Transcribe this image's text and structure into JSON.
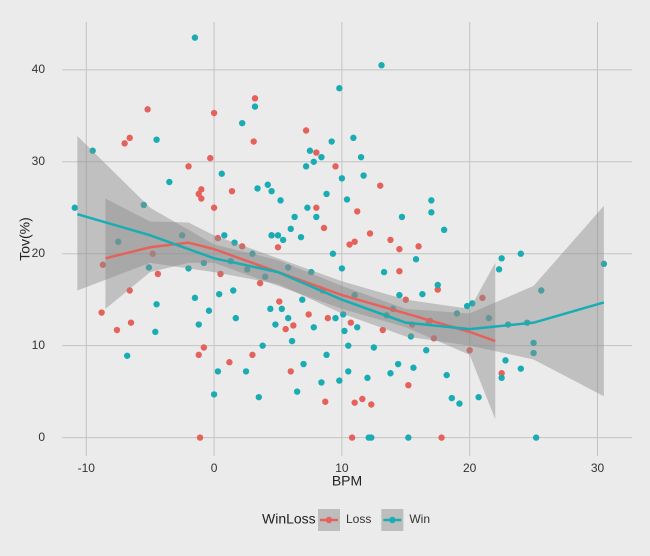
{
  "chart_data": {
    "type": "scatter",
    "x_label": "BPM",
    "y_label": "Tov(%)",
    "legend_title": "WinLoss",
    "xlim": [
      -11.9,
      32.7
    ],
    "ylim": [
      -2.0,
      45.2
    ],
    "xticks": [
      -10,
      0,
      10,
      20,
      30
    ],
    "yticks": [
      0,
      10,
      20,
      30,
      40
    ],
    "grid": true,
    "legend_position": "bottom",
    "band_color": "#8c8c8c",
    "series": [
      {
        "name": "Loss",
        "color": "#e5625c",
        "x": [
          -8.8,
          -8.7,
          -7.6,
          -7,
          -6.6,
          -6.5,
          -6.6,
          -5.2,
          -4.4,
          -4.8,
          -2,
          -1.2,
          -1.2,
          -1,
          -1,
          -0.8,
          -0.3,
          0,
          0,
          0.3,
          0.5,
          1.2,
          1.4,
          2.2,
          3,
          3.1,
          3.2,
          3.6,
          4.5,
          5,
          5.1,
          5.6,
          6,
          6.2,
          7.2,
          7.4,
          8,
          8,
          8.6,
          8.7,
          8.5,
          8.9,
          9.5,
          10.6,
          10.7,
          10.8,
          11,
          11,
          11.2,
          11.6,
          12.2,
          12.3,
          13,
          13.2,
          13.8,
          14.5,
          14.5,
          15,
          15.2,
          15.5,
          16,
          16.8,
          16.9,
          17.2,
          17.8,
          17.5,
          20,
          21,
          22.5,
          -1.1
        ],
        "values": [
          13.6,
          18.8,
          11.7,
          32,
          32.6,
          12.5,
          16,
          35.7,
          17.8,
          20,
          29.5,
          9,
          26.5,
          27,
          26,
          9.8,
          30.4,
          35.3,
          25,
          21.7,
          17.8,
          8.2,
          26.8,
          20.8,
          9,
          32.2,
          36.9,
          16.8,
          22,
          20.7,
          14.8,
          11.8,
          7.2,
          12.2,
          33.4,
          13.4,
          31,
          25,
          22.8,
          3.9,
          16,
          13,
          29.5,
          21,
          12.5,
          0,
          3.8,
          21.3,
          24.6,
          4.2,
          22.2,
          3.6,
          27.4,
          11.7,
          21.5,
          18.1,
          20.5,
          15,
          5.7,
          12.3,
          20.8,
          12.6,
          12.7,
          10.8,
          0,
          16.1,
          9.5,
          15.2,
          7,
          0
        ],
        "smooth": {
          "x": [
            -8.5,
            -5,
            -2,
            0,
            5,
            10,
            15,
            20,
            22
          ],
          "values": [
            19.5,
            20.7,
            21.2,
            20.5,
            18,
            15.5,
            13.5,
            11.5,
            10.5
          ],
          "lower": [
            14,
            18,
            19,
            19,
            16.5,
            14,
            12,
            9,
            2
          ],
          "upper": [
            26,
            23.5,
            23.4,
            22,
            19.5,
            17,
            15,
            14,
            19
          ]
        }
      },
      {
        "name": "Win",
        "color": "#19adb3",
        "x": [
          -10.9,
          -9.5,
          -7.5,
          -6.8,
          -5.5,
          -5.1,
          -4.5,
          -4.5,
          -4.6,
          -3.5,
          -2.5,
          -2,
          -1.5,
          -1.5,
          -1.2,
          -0.8,
          -0.4,
          0,
          0.3,
          0.4,
          0.6,
          0.8,
          1.3,
          1.5,
          1.6,
          1.7,
          2.2,
          2.5,
          2.6,
          3,
          3.2,
          3.4,
          3.5,
          3.8,
          4,
          4.2,
          4.4,
          4.5,
          4.5,
          4.8,
          5,
          5.2,
          5.3,
          5.4,
          5.8,
          5.8,
          6,
          6.1,
          6.3,
          6.5,
          6.8,
          6.9,
          7,
          7.2,
          7.3,
          7.5,
          7.6,
          7.8,
          7.8,
          8,
          8.4,
          8.4,
          8.8,
          8.8,
          9.2,
          9.3,
          9.5,
          9.8,
          9.8,
          10,
          10,
          10.1,
          10.2,
          10.4,
          10.5,
          10.5,
          10.9,
          11,
          11.2,
          11.5,
          11.7,
          12,
          12.1,
          12.3,
          12.5,
          13.1,
          13.3,
          13.5,
          13.8,
          14,
          14.4,
          14.5,
          14.7,
          15.2,
          15.4,
          15.6,
          15.8,
          16.3,
          16.6,
          17,
          17,
          17.5,
          18,
          18.2,
          18.6,
          19,
          19.2,
          19.8,
          20.2,
          20.7,
          21.5,
          22.3,
          22.5,
          22.5,
          22.8,
          23,
          24,
          24,
          24.5,
          25,
          25,
          25.2,
          25.6,
          30.5
        ],
        "values": [
          25,
          31.2,
          21.3,
          8.9,
          25.3,
          18.5,
          32.4,
          14.5,
          11.5,
          27.8,
          22,
          18.4,
          43.5,
          15.2,
          12.3,
          19,
          13.8,
          4.7,
          7.2,
          15.6,
          28.7,
          22,
          19.2,
          16,
          21.2,
          13,
          34.2,
          7.2,
          18.3,
          20,
          36,
          27.1,
          4.4,
          10,
          17.5,
          27.5,
          14,
          26.8,
          22,
          12.3,
          22,
          25.8,
          14,
          21.5,
          18.5,
          13,
          22.7,
          10.5,
          24,
          5,
          21.8,
          15,
          8,
          29.5,
          25,
          31.2,
          18,
          30,
          12,
          24,
          30.5,
          6,
          26.5,
          9,
          32.2,
          20,
          13,
          6.2,
          38,
          28.2,
          18.4,
          13.4,
          11.6,
          25.9,
          10,
          7.2,
          32.6,
          15.5,
          12,
          30.5,
          28.5,
          6.5,
          0,
          0,
          9.8,
          40.5,
          18,
          13.3,
          7,
          14,
          8,
          15.5,
          24,
          0,
          11,
          7.6,
          19.4,
          15.6,
          9.5,
          25.8,
          24.5,
          16.6,
          22.6,
          6.8,
          4.3,
          13.5,
          3.7,
          14.3,
          14.6,
          4.4,
          13,
          18.3,
          19.5,
          6.5,
          8.4,
          12.3,
          20,
          7.5,
          12.5,
          10.3,
          9.2,
          0,
          16,
          18.9
        ],
        "smooth": {
          "x": [
            -10.7,
            -5,
            0,
            5,
            10,
            15,
            20,
            25,
            30.5
          ],
          "values": [
            24.3,
            22,
            19.5,
            18,
            15,
            12.5,
            11.8,
            12.5,
            14.7
          ],
          "lower": [
            16,
            19,
            18,
            16.7,
            13.5,
            11,
            10,
            8.5,
            4.5
          ],
          "upper": [
            32.8,
            25,
            21,
            19.3,
            16.5,
            14,
            13.5,
            16.5,
            25.2
          ]
        }
      }
    ]
  }
}
